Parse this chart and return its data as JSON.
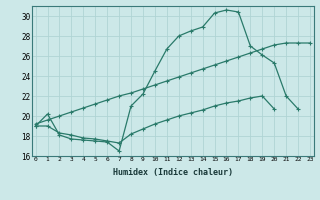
{
  "xlabel": "Humidex (Indice chaleur)",
  "ylabel": "",
  "bg_color": "#cce8e8",
  "grid_color": "#b0d4d4",
  "line_color": "#2a7a6a",
  "xlim": [
    0,
    23
  ],
  "ylim": [
    16,
    31
  ],
  "xticks": [
    0,
    1,
    2,
    3,
    4,
    5,
    6,
    7,
    8,
    9,
    10,
    11,
    12,
    13,
    14,
    15,
    16,
    17,
    18,
    19,
    20,
    21,
    22,
    23
  ],
  "yticks": [
    16,
    18,
    20,
    22,
    24,
    26,
    28,
    30
  ],
  "curve1_x": [
    0,
    1,
    2,
    3,
    4,
    5,
    6,
    7,
    8,
    9,
    10,
    11,
    12,
    13,
    14,
    15,
    16,
    17,
    18,
    19,
    20,
    21,
    22
  ],
  "curve1_y": [
    19.0,
    20.2,
    18.1,
    17.7,
    17.6,
    17.5,
    17.4,
    16.5,
    21.0,
    22.2,
    24.5,
    26.7,
    28.0,
    28.5,
    28.9,
    30.3,
    30.6,
    30.4,
    27.0,
    26.1,
    25.3,
    22.0,
    20.7
  ],
  "curve2_x": [
    0,
    1,
    2,
    3,
    4,
    5,
    6,
    7,
    8,
    9,
    10,
    11,
    12,
    13,
    14,
    15,
    16,
    17,
    18,
    19,
    20,
    21,
    22,
    23
  ],
  "curve2_y": [
    19.2,
    19.6,
    20.0,
    20.4,
    20.8,
    21.2,
    21.6,
    22.0,
    22.3,
    22.7,
    23.1,
    23.5,
    23.9,
    24.3,
    24.7,
    25.1,
    25.5,
    25.9,
    26.3,
    26.7,
    27.1,
    27.3,
    27.3,
    27.3
  ],
  "curve3_x": [
    0,
    1,
    2,
    3,
    4,
    5,
    6,
    7,
    8,
    9,
    10,
    11,
    12,
    13,
    14,
    15,
    16,
    17,
    18,
    19,
    20
  ],
  "curve3_y": [
    19.0,
    19.0,
    18.3,
    18.1,
    17.8,
    17.7,
    17.5,
    17.3,
    18.2,
    18.7,
    19.2,
    19.6,
    20.0,
    20.3,
    20.6,
    21.0,
    21.3,
    21.5,
    21.8,
    22.0,
    20.7
  ]
}
